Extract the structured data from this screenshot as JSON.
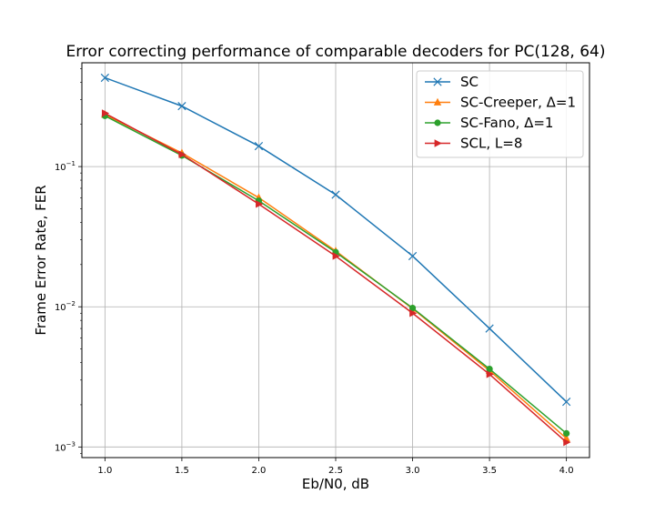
{
  "chart_data": {
    "type": "line",
    "title": "Error correcting performance of comparable decoders for PC(128, 64)",
    "xlabel": "Eb/N0, dB",
    "ylabel": "Frame Error Rate, FER",
    "x": [
      1.0,
      1.5,
      2.0,
      2.5,
      3.0,
      3.5,
      4.0
    ],
    "xlim": [
      0.85,
      4.15
    ],
    "ylim": [
      0.00084,
      0.55
    ],
    "yscale": "log",
    "grid": true,
    "legend_position": "top-right",
    "xticks": [
      {
        "value": 1.0,
        "label": "1.0"
      },
      {
        "value": 1.5,
        "label": "1.5"
      },
      {
        "value": 2.0,
        "label": "2.0"
      },
      {
        "value": 2.5,
        "label": "2.5"
      },
      {
        "value": 3.0,
        "label": "3.0"
      },
      {
        "value": 3.5,
        "label": "3.5"
      },
      {
        "value": 4.0,
        "label": "4.0"
      }
    ],
    "yticks": [
      {
        "value": 0.1,
        "base": "10",
        "exp": "−1"
      },
      {
        "value": 0.01,
        "base": "10",
        "exp": "−2"
      },
      {
        "value": 0.001,
        "base": "10",
        "exp": "−3"
      }
    ],
    "series": [
      {
        "name": "SC",
        "color": "#1f77b4",
        "marker": "x",
        "values": [
          0.43,
          0.27,
          0.14,
          0.063,
          0.023,
          0.007,
          0.0021
        ]
      },
      {
        "name": "SC-Creeper, Δ=1",
        "color": "#ff7f0e",
        "marker": "triangle-up",
        "values": [
          0.235,
          0.125,
          0.06,
          0.025,
          0.0097,
          0.0035,
          0.00115
        ]
      },
      {
        "name": "SC-Fano, Δ=1",
        "color": "#2ca02c",
        "marker": "circle",
        "values": [
          0.23,
          0.12,
          0.057,
          0.0245,
          0.0098,
          0.0036,
          0.00125
        ]
      },
      {
        "name": "SCL, L=8",
        "color": "#d62728",
        "marker": "triangle-right",
        "values": [
          0.24,
          0.122,
          0.054,
          0.023,
          0.009,
          0.0033,
          0.00108
        ]
      }
    ]
  }
}
